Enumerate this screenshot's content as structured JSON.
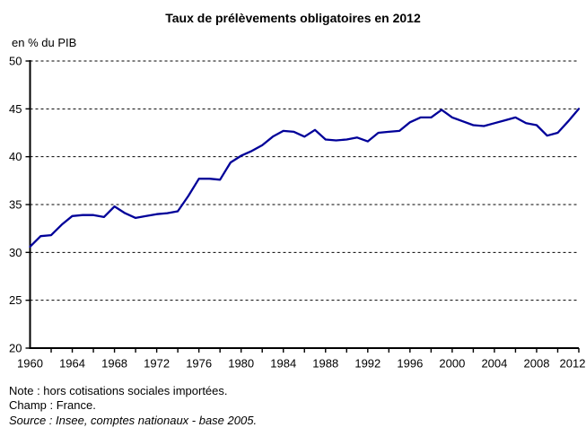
{
  "title": "Taux de prélèvements obligatoires en 2012",
  "unit_label": "en % du PIB",
  "notes": {
    "note": "Note : hors cotisations sociales importées.",
    "champ": "Champ : France.",
    "source": "Source : Insee, comptes nationaux - base 2005."
  },
  "chart_data": {
    "type": "line",
    "title": "Taux de prélèvements obligatoires en 2012",
    "ylabel": "en % du PIB",
    "xlabel": "",
    "ylim": [
      20,
      50
    ],
    "yticks": [
      20,
      25,
      30,
      35,
      40,
      45,
      50
    ],
    "xtick_labels": [
      "1960",
      "1964",
      "1968",
      "1972",
      "1976",
      "1980",
      "1984",
      "1988",
      "1992",
      "1996",
      "2000",
      "2004",
      "2008",
      "2012"
    ],
    "grid": "horizontal-dashed",
    "legend": "none",
    "line_color": "#000099",
    "years": [
      1960,
      1961,
      1962,
      1963,
      1964,
      1965,
      1966,
      1967,
      1968,
      1969,
      1970,
      1971,
      1972,
      1973,
      1974,
      1975,
      1976,
      1977,
      1978,
      1979,
      1980,
      1981,
      1982,
      1983,
      1984,
      1985,
      1986,
      1987,
      1988,
      1989,
      1990,
      1991,
      1992,
      1993,
      1994,
      1995,
      1996,
      1997,
      1998,
      1999,
      2000,
      2001,
      2002,
      2003,
      2004,
      2005,
      2006,
      2007,
      2008,
      2009,
      2010,
      2011,
      2012
    ],
    "values": [
      30.6,
      31.7,
      31.8,
      32.9,
      33.8,
      33.9,
      33.9,
      33.7,
      34.8,
      34.1,
      33.6,
      33.8,
      34.0,
      34.1,
      34.3,
      35.9,
      37.7,
      37.7,
      37.6,
      39.4,
      40.1,
      40.6,
      41.2,
      42.1,
      42.7,
      42.6,
      42.1,
      42.8,
      41.8,
      41.7,
      41.8,
      42.0,
      41.6,
      42.5,
      42.6,
      42.7,
      43.6,
      44.1,
      44.1,
      44.9,
      44.1,
      43.7,
      43.3,
      43.2,
      43.5,
      43.8,
      44.1,
      43.5,
      43.3,
      42.2,
      42.5,
      43.7,
      45.0
    ]
  }
}
